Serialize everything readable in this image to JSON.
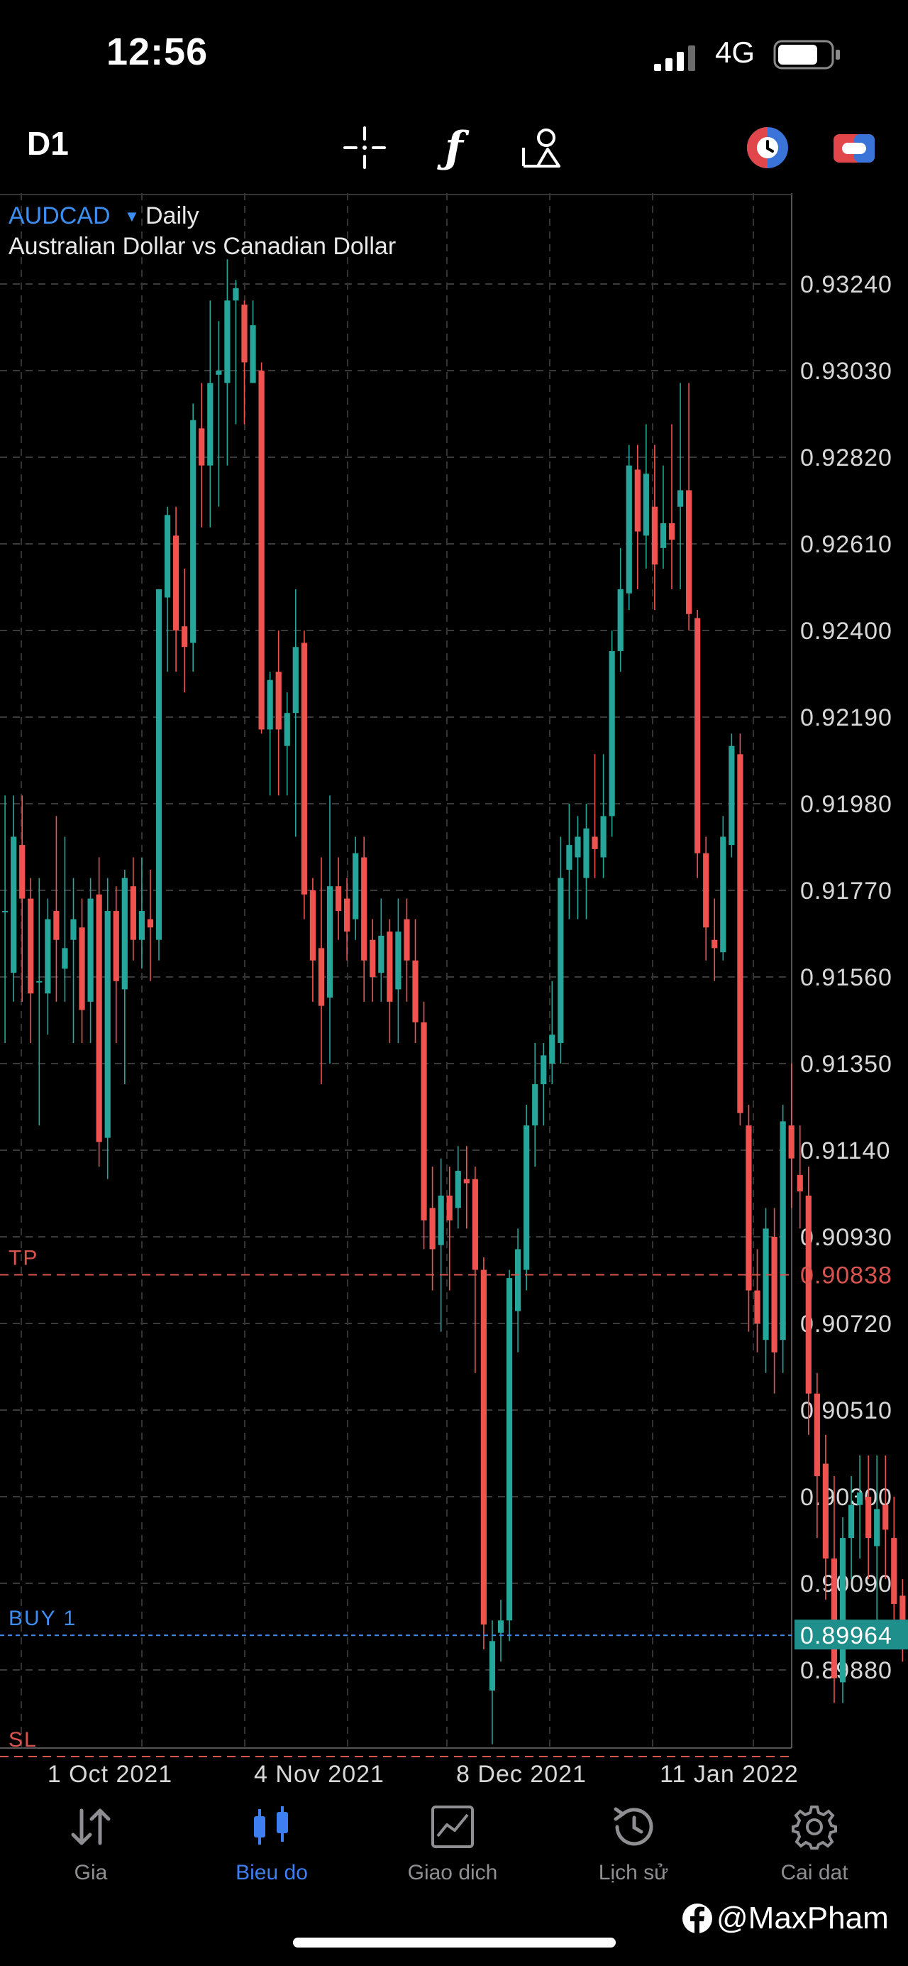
{
  "status_bar": {
    "time": "12:56",
    "network": "4G"
  },
  "toolbar": {
    "timeframe": "D1",
    "tools": [
      "crosshair-icon",
      "indicator-f-icon",
      "objects-icon"
    ],
    "right_icons": [
      "one-click-trading-icon",
      "account-icon"
    ]
  },
  "chart": {
    "symbol": "AUDCAD",
    "period": "Daily",
    "description": "Australian Dollar vs Canadian Dollar",
    "bid_price": "0.89964",
    "tp_level": "0.90838",
    "price_axis": [
      "0.93240",
      "0.93030",
      "0.92820",
      "0.92610",
      "0.92400",
      "0.92190",
      "0.91980",
      "0.91770",
      "0.91560",
      "0.91350",
      "0.91140",
      "0.90930",
      "0.90720",
      "0.90510",
      "0.90300",
      "0.90090",
      "0.89880"
    ],
    "date_axis": [
      "1 Oct 2021",
      "4 Nov 2021",
      "8 Dec 2021",
      "11 Jan 2022"
    ],
    "lines": [
      {
        "label": "TP",
        "price": 0.90838,
        "color": "#d9534f"
      },
      {
        "label": "BUY 1",
        "price": 0.89964,
        "color": "#3d8ef0"
      },
      {
        "label": "SL",
        "price": 0.8967,
        "color": "#d9534f"
      }
    ],
    "up_color": "#26a69a",
    "down_color": "#ef5350"
  },
  "chart_data": {
    "type": "candlestick",
    "symbol": "AUDCAD",
    "timeframe": "Daily",
    "ylim": [
      0.8965,
      0.9335
    ],
    "bars": [
      [
        0.9172,
        0.9172,
        0.92,
        0.914
      ],
      [
        0.9157,
        0.919,
        0.92,
        0.915
      ],
      [
        0.9188,
        0.9175,
        0.92,
        0.915
      ],
      [
        0.9175,
        0.9152,
        0.918,
        0.914
      ],
      [
        0.9155,
        0.9155,
        0.918,
        0.912
      ],
      [
        0.9152,
        0.917,
        0.9175,
        0.9142
      ],
      [
        0.9172,
        0.9165,
        0.9195,
        0.915
      ],
      [
        0.9158,
        0.9163,
        0.919,
        0.915
      ],
      [
        0.9165,
        0.917,
        0.918,
        0.914
      ],
      [
        0.9168,
        0.9148,
        0.9175,
        0.914
      ],
      [
        0.915,
        0.9175,
        0.918,
        0.914
      ],
      [
        0.9176,
        0.9116,
        0.9185,
        0.911
      ],
      [
        0.9117,
        0.9172,
        0.918,
        0.9107
      ],
      [
        0.9172,
        0.9155,
        0.9178,
        0.914
      ],
      [
        0.9153,
        0.918,
        0.9182,
        0.913
      ],
      [
        0.9178,
        0.9165,
        0.9185,
        0.916
      ],
      [
        0.9165,
        0.9172,
        0.9185,
        0.9158
      ],
      [
        0.917,
        0.9168,
        0.9182,
        0.9155
      ],
      [
        0.9165,
        0.925,
        0.925,
        0.916
      ],
      [
        0.9248,
        0.9268,
        0.927,
        0.923
      ],
      [
        0.9263,
        0.924,
        0.927,
        0.923
      ],
      [
        0.9241,
        0.9236,
        0.9255,
        0.9225
      ],
      [
        0.9237,
        0.9291,
        0.9295,
        0.923
      ],
      [
        0.9289,
        0.928,
        0.93,
        0.9265
      ],
      [
        0.928,
        0.93,
        0.932,
        0.9265
      ],
      [
        0.9302,
        0.9303,
        0.9315,
        0.927
      ],
      [
        0.93,
        0.932,
        0.933,
        0.928
      ],
      [
        0.932,
        0.9323,
        0.9325,
        0.929
      ],
      [
        0.9319,
        0.9305,
        0.932,
        0.929
      ],
      [
        0.93,
        0.9314,
        0.932,
        0.93
      ],
      [
        0.9303,
        0.9216,
        0.9305,
        0.9215
      ],
      [
        0.9216,
        0.9228,
        0.923,
        0.92
      ],
      [
        0.923,
        0.9216,
        0.924,
        0.92
      ],
      [
        0.9212,
        0.922,
        0.9225,
        0.92
      ],
      [
        0.922,
        0.9236,
        0.925,
        0.919
      ],
      [
        0.9237,
        0.9176,
        0.924,
        0.917
      ],
      [
        0.9177,
        0.916,
        0.918,
        0.915
      ],
      [
        0.9163,
        0.9149,
        0.9185,
        0.913
      ],
      [
        0.9151,
        0.9178,
        0.92,
        0.9135
      ],
      [
        0.9178,
        0.9172,
        0.9185,
        0.9165
      ],
      [
        0.9175,
        0.9167,
        0.918,
        0.916
      ],
      [
        0.917,
        0.9186,
        0.919,
        0.9165
      ],
      [
        0.9185,
        0.916,
        0.919,
        0.915
      ],
      [
        0.9165,
        0.9156,
        0.917,
        0.915
      ],
      [
        0.9157,
        0.9166,
        0.9175,
        0.915
      ],
      [
        0.9167,
        0.915,
        0.917,
        0.914
      ],
      [
        0.9153,
        0.9167,
        0.9175,
        0.914
      ],
      [
        0.917,
        0.916,
        0.9175,
        0.915
      ],
      [
        0.916,
        0.9145,
        0.917,
        0.914
      ],
      [
        0.9145,
        0.9097,
        0.915,
        0.909
      ],
      [
        0.91,
        0.909,
        0.911,
        0.908
      ],
      [
        0.9091,
        0.9103,
        0.9112,
        0.907
      ],
      [
        0.9103,
        0.9097,
        0.911,
        0.908
      ],
      [
        0.91,
        0.9109,
        0.9115,
        0.9095
      ],
      [
        0.9107,
        0.9106,
        0.9115,
        0.9095
      ],
      [
        0.9107,
        0.9085,
        0.911,
        0.906
      ],
      [
        0.9085,
        0.8999,
        0.9088,
        0.8993
      ],
      [
        0.8983,
        0.8995,
        0.9,
        0.897
      ],
      [
        0.8997,
        0.9,
        0.9005,
        0.899
      ],
      [
        0.9,
        0.9083,
        0.9085,
        0.8995
      ],
      [
        0.9075,
        0.909,
        0.9095,
        0.9065
      ],
      [
        0.9085,
        0.912,
        0.9125,
        0.908
      ],
      [
        0.912,
        0.913,
        0.914,
        0.911
      ],
      [
        0.913,
        0.9137,
        0.914,
        0.912
      ],
      [
        0.9135,
        0.9142,
        0.9155,
        0.913
      ],
      [
        0.914,
        0.918,
        0.919,
        0.9135
      ],
      [
        0.9182,
        0.9188,
        0.9198,
        0.917
      ],
      [
        0.9185,
        0.919,
        0.9195,
        0.917
      ],
      [
        0.918,
        0.9192,
        0.9198,
        0.917
      ],
      [
        0.919,
        0.9187,
        0.921,
        0.918
      ],
      [
        0.9185,
        0.9195,
        0.921,
        0.918
      ],
      [
        0.9195,
        0.9235,
        0.924,
        0.919
      ],
      [
        0.9235,
        0.925,
        0.926,
        0.923
      ],
      [
        0.9249,
        0.928,
        0.9285,
        0.9245
      ],
      [
        0.9279,
        0.9264,
        0.9285,
        0.925
      ],
      [
        0.9263,
        0.9278,
        0.929,
        0.9255
      ],
      [
        0.927,
        0.9256,
        0.9285,
        0.9245
      ],
      [
        0.926,
        0.9266,
        0.928,
        0.9255
      ],
      [
        0.9266,
        0.9262,
        0.929,
        0.925
      ],
      [
        0.927,
        0.9274,
        0.93,
        0.925
      ],
      [
        0.9274,
        0.9244,
        0.93,
        0.924
      ],
      [
        0.9243,
        0.9186,
        0.9245,
        0.918
      ],
      [
        0.9186,
        0.9168,
        0.919,
        0.916
      ],
      [
        0.9165,
        0.9163,
        0.9175,
        0.9155
      ],
      [
        0.9162,
        0.919,
        0.9195,
        0.916
      ],
      [
        0.9188,
        0.9212,
        0.9215,
        0.9185
      ],
      [
        0.921,
        0.9123,
        0.9215,
        0.912
      ],
      [
        0.912,
        0.908,
        0.9125,
        0.907
      ],
      [
        0.908,
        0.9072,
        0.909,
        0.9065
      ],
      [
        0.9068,
        0.9095,
        0.91,
        0.906
      ],
      [
        0.9093,
        0.9065,
        0.91,
        0.9055
      ],
      [
        0.9068,
        0.9121,
        0.9125,
        0.906
      ],
      [
        0.912,
        0.9112,
        0.9135,
        0.91
      ],
      [
        0.9108,
        0.9104,
        0.912,
        0.9095
      ],
      [
        0.9103,
        0.9055,
        0.911,
        0.9045
      ],
      [
        0.9055,
        0.9035,
        0.906,
        0.902
      ],
      [
        0.9038,
        0.9015,
        0.9045,
        0.9005
      ],
      [
        0.9015,
        0.8986,
        0.9035,
        0.898
      ],
      [
        0.8985,
        0.902,
        0.9025,
        0.898
      ],
      [
        0.902,
        0.9028,
        0.9035,
        0.901
      ],
      [
        0.9028,
        0.9031,
        0.904,
        0.9015
      ],
      [
        0.903,
        0.902,
        0.904,
        0.901
      ],
      [
        0.9018,
        0.9027,
        0.904,
        0.9
      ],
      [
        0.9028,
        0.9022,
        0.904,
        0.901
      ],
      [
        0.902,
        0.9004,
        0.903,
        0.9
      ],
      [
        0.9006,
        0.8998,
        0.901,
        0.899
      ]
    ]
  },
  "nav": [
    {
      "label": "Gia",
      "icon": "quotes-arrows-icon",
      "active": false
    },
    {
      "label": "Bieu do",
      "icon": "chart-candles-icon",
      "active": true
    },
    {
      "label": "Giao dich",
      "icon": "trade-chart-icon",
      "active": false
    },
    {
      "label": "Lịch sử",
      "icon": "history-clock-icon",
      "active": false
    },
    {
      "label": "Cai dat",
      "icon": "settings-gear-icon",
      "active": false
    }
  ],
  "watermark": "@MaxPham"
}
